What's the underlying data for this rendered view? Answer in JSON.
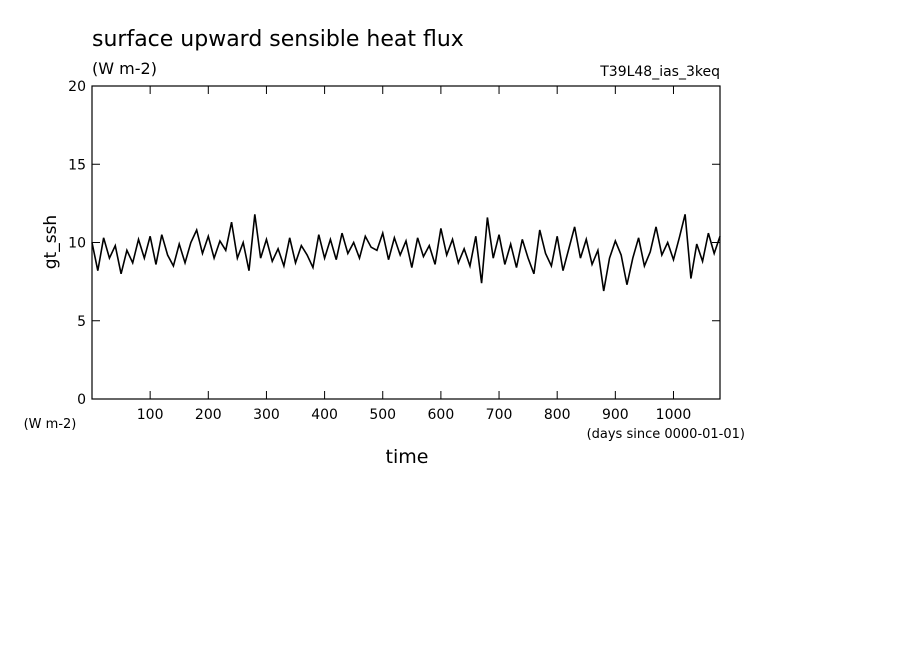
{
  "chart_data": {
    "type": "line",
    "title": "surface upward sensible heat flux",
    "subtitle": "(W m-2)",
    "annotation": "T39L48_ias_3keq",
    "y_label": "gt_ssh",
    "y_units": "(W m-2)",
    "x_label": "time",
    "x_units": "(days since 0000-01-01)",
    "xlim": [
      0,
      1080
    ],
    "ylim": [
      0,
      20
    ],
    "xticks": [
      100,
      200,
      300,
      400,
      500,
      600,
      700,
      800,
      900,
      1000
    ],
    "yticks": [
      0,
      5,
      10,
      15,
      20
    ],
    "x": [
      0,
      10,
      20,
      30,
      40,
      50,
      60,
      70,
      80,
      90,
      100,
      110,
      120,
      130,
      140,
      150,
      160,
      170,
      180,
      190,
      200,
      210,
      220,
      230,
      240,
      250,
      260,
      270,
      280,
      290,
      300,
      310,
      320,
      330,
      340,
      350,
      360,
      370,
      380,
      390,
      400,
      410,
      420,
      430,
      440,
      450,
      460,
      470,
      480,
      490,
      500,
      510,
      520,
      530,
      540,
      550,
      560,
      570,
      580,
      590,
      600,
      610,
      620,
      630,
      640,
      650,
      660,
      670,
      680,
      690,
      700,
      710,
      720,
      730,
      740,
      750,
      760,
      770,
      780,
      790,
      800,
      810,
      820,
      830,
      840,
      850,
      860,
      870,
      880,
      890,
      900,
      910,
      920,
      930,
      940,
      950,
      960,
      970,
      980,
      990,
      1000,
      1010,
      1020,
      1030,
      1040,
      1050,
      1060,
      1070,
      1080
    ],
    "series": [
      {
        "color": "#000000",
        "values": [
          10.0,
          8.2,
          10.3,
          9.0,
          9.8,
          8.0,
          9.5,
          8.7,
          10.2,
          9.0,
          10.4,
          8.6,
          10.5,
          9.2,
          8.5,
          9.9,
          8.7,
          10.0,
          10.8,
          9.3,
          10.4,
          9.0,
          10.1,
          9.5,
          11.3,
          9.0,
          10.0,
          8.2,
          11.8,
          9.0,
          10.2,
          8.8,
          9.6,
          8.5,
          10.3,
          8.7,
          9.8,
          9.2,
          8.4,
          10.5,
          9.0,
          10.2,
          8.9,
          10.6,
          9.3,
          10.0,
          9.0,
          10.4,
          9.7,
          9.5,
          10.6,
          8.9,
          10.3,
          9.2,
          10.1,
          8.4,
          10.3,
          9.1,
          9.8,
          8.6,
          10.9,
          9.2,
          10.2,
          8.7,
          9.6,
          8.5,
          10.4,
          7.4,
          11.6,
          9.0,
          10.5,
          8.6,
          9.9,
          8.4,
          10.2,
          9.0,
          8.0,
          10.8,
          9.3,
          8.5,
          10.4,
          8.2,
          9.6,
          11.0,
          9.0,
          10.2,
          8.6,
          9.5,
          6.9,
          9.0,
          10.1,
          9.2,
          7.3,
          9.0,
          10.3,
          8.5,
          9.4,
          11.0,
          9.2,
          10.0,
          8.9,
          10.3,
          11.8,
          7.7,
          9.9,
          8.8,
          10.6,
          9.3,
          10.4
        ]
      }
    ]
  }
}
